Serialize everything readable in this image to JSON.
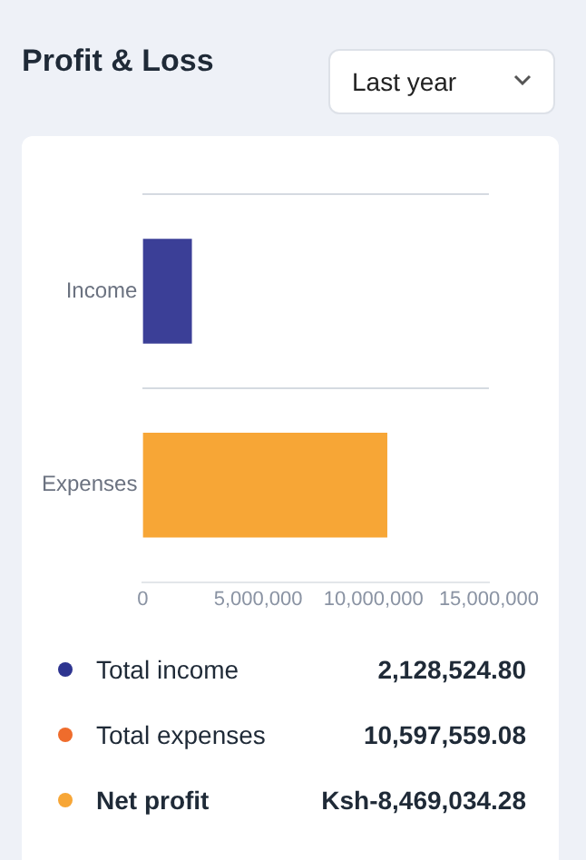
{
  "chart_data": {
    "type": "bar",
    "orientation": "horizontal",
    "title": "Profit & Loss",
    "categories": [
      "Income",
      "Expenses"
    ],
    "values": [
      2128524.8,
      10597559.08
    ],
    "colors": [
      "#3b3f97",
      "#f7a636"
    ],
    "xlim": [
      0,
      15000000
    ],
    "xticks": [
      {
        "value": 0,
        "label": "0"
      },
      {
        "value": 5000000,
        "label": "5,000,000"
      },
      {
        "value": 10000000,
        "label": "10,000,000"
      },
      {
        "value": 15000000,
        "label": "15,000,000"
      }
    ],
    "grid": "y",
    "legend": false,
    "annotations": [
      "Last year",
      "Total income",
      "2,128,524.80",
      "Total expenses",
      "10,597,559.08",
      "Net profit",
      "Ksh-8,469,034.28"
    ]
  }
}
